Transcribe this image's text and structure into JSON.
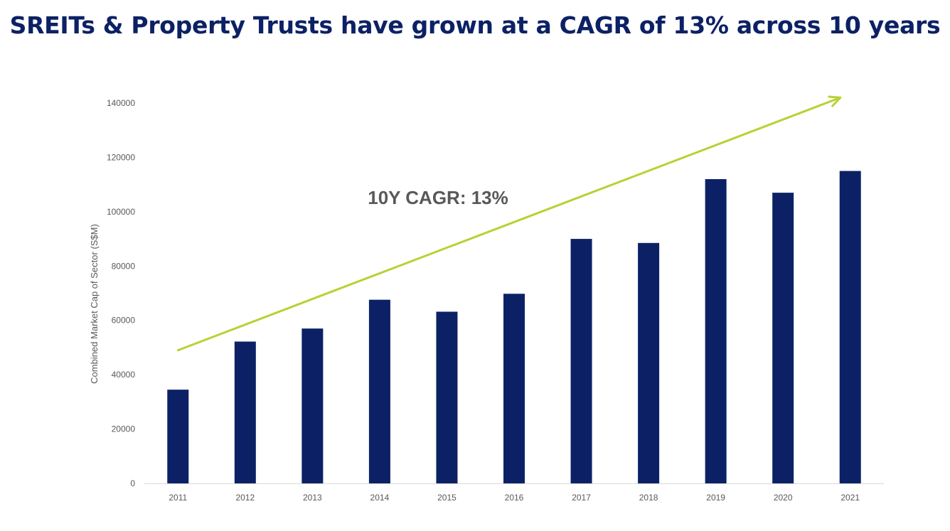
{
  "page": {
    "title": "SREITs & Property Trusts have grown at a CAGR of 13% across 10 years"
  },
  "colors": {
    "title": "#0c2165",
    "bar": "#0c2165",
    "arrow": "#b5d334",
    "axis_text": "#595959",
    "axis_line": "#d9d9d9"
  },
  "chart_data": {
    "type": "bar",
    "categories": [
      "2011",
      "2012",
      "2013",
      "2014",
      "2015",
      "2016",
      "2017",
      "2018",
      "2019",
      "2020",
      "2021"
    ],
    "values": [
      34500,
      52200,
      57000,
      67600,
      63200,
      69800,
      90000,
      88500,
      112000,
      107000,
      115000
    ],
    "title": "SREITs & Property Trusts have grown at a CAGR of 13% across 10 years",
    "xlabel": "",
    "ylabel": "Combined Market Cap of Sector (S$M)",
    "ylim": [
      0,
      140000
    ],
    "yticks": [
      0,
      20000,
      40000,
      60000,
      80000,
      100000,
      120000,
      140000
    ],
    "grid": false,
    "legend": "none",
    "annotations": [
      {
        "type": "trend-arrow",
        "label": "10Y CAGR: 13%",
        "start": {
          "x": "2011",
          "y": 49000
        },
        "end": {
          "x": "2021",
          "y": 142000
        }
      }
    ]
  }
}
